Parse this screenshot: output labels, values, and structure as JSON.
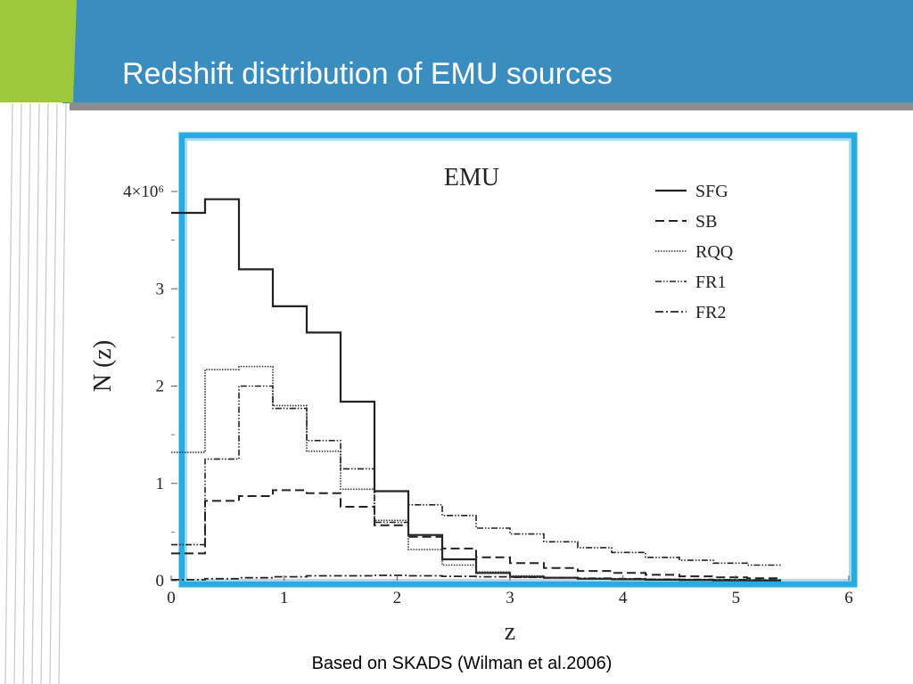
{
  "slide": {
    "title": "Redshift distribution of EMU sources",
    "footer": "Based on SKADS (Wilman et al.2006)"
  },
  "colors": {
    "header_blue": "#3a8dbf",
    "accent_green": "#9cc83a",
    "rule_gray": "#8c8c8c",
    "frame_blue": "#29abe2"
  },
  "chart_data": {
    "type": "line",
    "step": true,
    "title": "EMU",
    "xlabel": "z",
    "ylabel": "N (z)",
    "xlim": [
      0,
      6
    ],
    "ylim": [
      0,
      4000000
    ],
    "x_ticks": [
      "0",
      "1",
      "2",
      "3",
      "4",
      "5",
      "6"
    ],
    "y_ticks": [
      "0",
      "1",
      "2",
      "3",
      "4×10⁶"
    ],
    "legend": "top-right",
    "grid": false,
    "bin_edges": [
      0,
      0.3,
      0.6,
      0.9,
      1.2,
      1.5,
      1.8,
      2.1,
      2.4,
      2.7,
      3.0,
      3.3,
      3.6,
      3.9,
      4.2,
      4.5,
      4.8,
      5.1,
      5.4
    ],
    "series": [
      {
        "name": "SFG",
        "values": [
          3780000,
          3920000,
          3200000,
          2820000,
          2550000,
          1840000,
          920000,
          470000,
          220000,
          80000,
          40000,
          30000,
          20000,
          15000,
          10000,
          8000,
          5000,
          3000
        ]
      },
      {
        "name": "SB",
        "values": [
          280000,
          820000,
          870000,
          930000,
          900000,
          760000,
          570000,
          450000,
          330000,
          240000,
          180000,
          130000,
          100000,
          80000,
          60000,
          45000,
          35000,
          25000
        ]
      },
      {
        "name": "RQQ",
        "values": [
          1320000,
          2170000,
          2200000,
          1800000,
          1330000,
          940000,
          620000,
          320000,
          160000,
          90000,
          50000,
          30000,
          20000,
          15000,
          10000,
          8000,
          5000,
          3000
        ]
      },
      {
        "name": "FR1",
        "values": [
          370000,
          1250000,
          2000000,
          1770000,
          1440000,
          1150000,
          600000,
          780000,
          670000,
          540000,
          480000,
          400000,
          340000,
          290000,
          240000,
          210000,
          180000,
          160000
        ]
      },
      {
        "name": "FR2",
        "values": [
          10000,
          20000,
          30000,
          40000,
          50000,
          50000,
          55000,
          50000,
          45000,
          40000,
          35000,
          30000,
          25000,
          20000,
          15000,
          12000,
          10000,
          8000
        ]
      }
    ]
  }
}
